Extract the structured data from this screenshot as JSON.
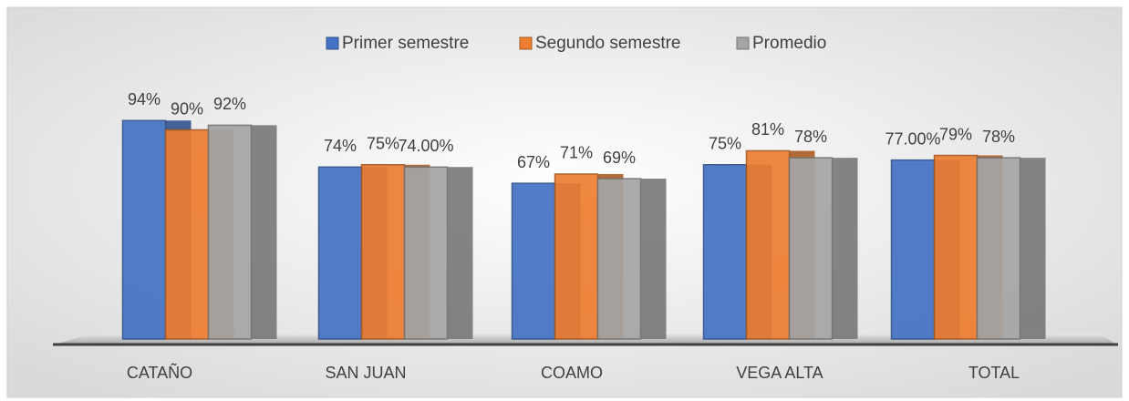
{
  "chart_data": {
    "type": "bar",
    "categories": [
      "CATAÑO",
      "SAN JUAN",
      "COAMO",
      "VEGA ALTA",
      "TOTAL"
    ],
    "series": [
      {
        "name": "Primer semestre",
        "color": "#4472c4",
        "values": [
          94,
          74,
          67,
          75,
          77
        ],
        "value_labels": [
          "94%",
          "74%",
          "67%",
          "75%",
          "77.00%"
        ]
      },
      {
        "name": "Segundo semestre",
        "color": "#ed7d31",
        "values": [
          90,
          75,
          71,
          81,
          79
        ],
        "value_labels": [
          "90%",
          "75%",
          "71%",
          "81%",
          "79%"
        ]
      },
      {
        "name": "Promedio",
        "color": "#a5a5a5",
        "values": [
          92,
          74,
          69,
          78,
          78
        ],
        "value_labels": [
          "92%",
          "74.00%",
          "69%",
          "78%",
          "78%"
        ]
      }
    ],
    "legend": "top"
  }
}
